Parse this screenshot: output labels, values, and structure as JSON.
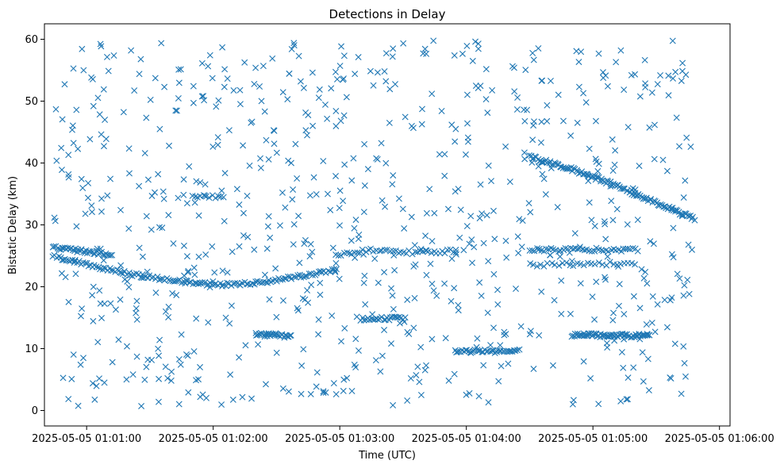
{
  "chart_data": {
    "type": "scatter",
    "title": "Detections in Delay",
    "xlabel": "Time (UTC)",
    "ylabel": "Bistatic Delay (km)",
    "marker": "x",
    "color": "#1f77b4",
    "xlim": [
      "2025-05-05 01:00:40",
      "2025-05-05 01:06:05"
    ],
    "ylim": [
      -2.5,
      62.5
    ],
    "x_ticks": [
      "2025-05-05 01:01:00",
      "2025-05-05 01:02:00",
      "2025-05-05 01:03:00",
      "2025-05-05 01:04:00",
      "2025-05-05 01:05:00",
      "2025-05-05 01:06:00"
    ],
    "x_tick_labels": [
      "2025-05-05 01:01:00",
      "2025-05-05 01:02:00",
      "2025-05-05 01:03:00",
      "2025-05-05 01:04:00",
      "2025-05-05 01:05:00",
      "2025-05-05 01:06:00"
    ],
    "y_ticks": [
      0,
      10,
      20,
      30,
      40,
      50,
      60
    ],
    "y_tick_labels": [
      "0",
      "10",
      "20",
      "30",
      "40",
      "50",
      "60"
    ],
    "grid": false,
    "time_range": [
      "2025-05-05 01:00:44",
      "2025-05-05 01:05:48"
    ],
    "tracks": [
      {
        "points": [
          [
            "2025-05-05 01:00:44",
            25.0
          ],
          [
            "2025-05-05 01:01:00",
            23.6
          ],
          [
            "2025-05-05 01:01:20",
            22.1
          ],
          [
            "2025-05-05 01:01:40",
            21.0
          ],
          [
            "2025-05-05 01:02:00",
            20.3
          ],
          [
            "2025-05-05 01:02:20",
            20.6
          ],
          [
            "2025-05-05 01:02:40",
            21.6
          ],
          [
            "2025-05-05 01:02:58",
            22.8
          ]
        ],
        "count": 150
      },
      {
        "points": [
          [
            "2025-05-05 01:00:44",
            26.3
          ],
          [
            "2025-05-05 01:01:00",
            25.7
          ],
          [
            "2025-05-05 01:01:12",
            25.2
          ]
        ],
        "count": 40
      },
      {
        "points": [
          [
            "2025-05-05 01:02:58",
            25.0
          ],
          [
            "2025-05-05 01:03:15",
            26.0
          ],
          [
            "2025-05-05 01:03:35",
            25.5
          ],
          [
            "2025-05-05 01:03:55",
            25.8
          ]
        ],
        "count": 45
      },
      {
        "points": [
          [
            "2025-05-05 01:04:30",
            41.0
          ],
          [
            "2025-05-05 01:04:50",
            39.0
          ],
          [
            "2025-05-05 01:05:10",
            36.5
          ],
          [
            "2025-05-05 01:05:30",
            33.5
          ],
          [
            "2025-05-05 01:05:48",
            31.0
          ]
        ],
        "count": 120
      },
      {
        "points": [
          [
            "2025-05-05 01:04:50",
            12.2
          ],
          [
            "2025-05-05 01:05:27",
            12.1
          ]
        ],
        "count": 70
      },
      {
        "points": [
          [
            "2025-05-05 01:03:55",
            9.5
          ],
          [
            "2025-05-05 01:04:25",
            9.6
          ]
        ],
        "count": 40
      },
      {
        "points": [
          [
            "2025-05-05 01:02:20",
            12.3
          ],
          [
            "2025-05-05 01:02:37",
            12.0
          ]
        ],
        "count": 30
      },
      {
        "points": [
          [
            "2025-05-05 01:03:10",
            14.8
          ],
          [
            "2025-05-05 01:03:30",
            14.9
          ]
        ],
        "count": 25
      },
      {
        "points": [
          [
            "2025-05-05 01:04:30",
            26.0
          ],
          [
            "2025-05-05 01:05:20",
            26.0
          ]
        ],
        "count": 45
      },
      {
        "points": [
          [
            "2025-05-05 01:04:30",
            23.5
          ],
          [
            "2025-05-05 01:05:20",
            23.8
          ]
        ],
        "count": 30
      },
      {
        "points": [
          [
            "2025-05-05 01:01:50",
            34.5
          ],
          [
            "2025-05-05 01:02:05",
            34.5
          ]
        ],
        "count": 12
      }
    ],
    "clutter": {
      "count": 780,
      "y_range": [
        0.5,
        59.8
      ]
    }
  }
}
